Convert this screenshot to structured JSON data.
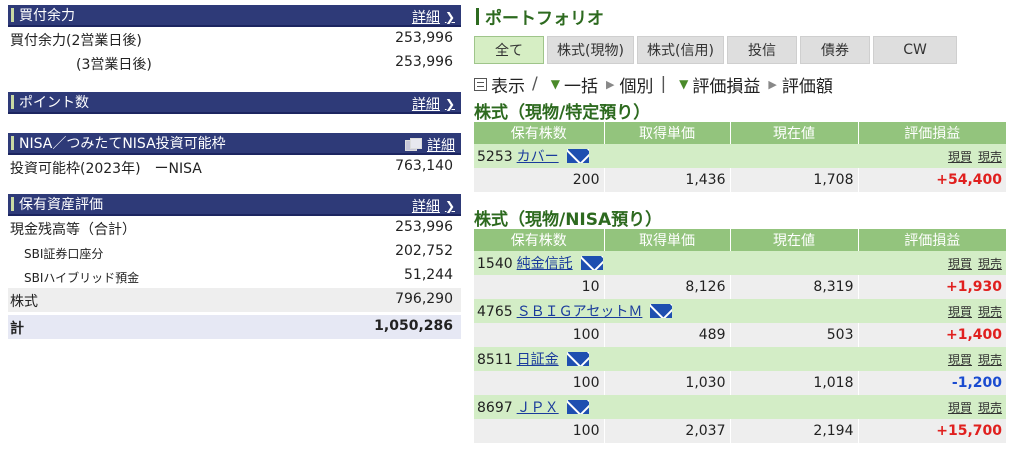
{
  "left": {
    "buying_power": {
      "title": "買付余力",
      "detail": "詳細",
      "rows": [
        {
          "label": "買付余力(2営業日後)",
          "value": "253,996"
        },
        {
          "label": "(3営業日後)",
          "value": "253,996"
        }
      ]
    },
    "points": {
      "title": "ポイント数",
      "detail": "詳細"
    },
    "nisa": {
      "title": "NISA／つみたてNISA投資可能枠",
      "detail": "詳細",
      "rows": [
        {
          "label": "投資可能枠(2023年)　ーNISA",
          "value": "763,140"
        }
      ]
    },
    "assets": {
      "title": "保有資産評価",
      "detail": "詳細",
      "rows": [
        {
          "label": "現金残高等（合計）",
          "value": "253,996"
        },
        {
          "label": "SBI証券口座分",
          "value": "202,752"
        },
        {
          "label": "SBIハイブリッド預金",
          "value": "51,244"
        },
        {
          "label": "株式",
          "value": "796,290"
        },
        {
          "label": "計",
          "value": "1,050,286"
        }
      ]
    }
  },
  "right": {
    "title": "ポートフォリオ",
    "tabs": [
      "全て",
      "株式(現物)",
      "株式(信用)",
      "投信",
      "債券",
      "CW"
    ],
    "filters": {
      "display": "表示",
      "slash": "/",
      "bulk": "一括",
      "individual": "個別",
      "pipe": "|",
      "gain": "評価損益",
      "amount": "評価額"
    },
    "columns": [
      "保有株数",
      "取得単価",
      "現在値",
      "評価損益"
    ],
    "action_buy": "現買",
    "action_sell": "現売",
    "specific": {
      "title": "株式（現物/特定預り）",
      "stocks": [
        {
          "code": "5253",
          "name": "カバー",
          "shares": "200",
          "cost": "1,436",
          "price": "1,708",
          "gain": "+54,400"
        }
      ]
    },
    "nisa": {
      "title": "株式（現物/NISA預り）",
      "stocks": [
        {
          "code": "1540",
          "name": "純金信託",
          "shares": "10",
          "cost": "8,126",
          "price": "8,319",
          "gain": "+1,930"
        },
        {
          "code": "4765",
          "name": "ＳＢＩＧアセットＭ",
          "shares": "100",
          "cost": "489",
          "price": "503",
          "gain": "+1,400"
        },
        {
          "code": "8511",
          "name": "日証金",
          "shares": "100",
          "cost": "1,030",
          "price": "1,018",
          "gain": "-1,200"
        },
        {
          "code": "8697",
          "name": "ＪＰＸ",
          "shares": "100",
          "cost": "2,037",
          "price": "2,194",
          "gain": "+15,700"
        }
      ]
    }
  }
}
